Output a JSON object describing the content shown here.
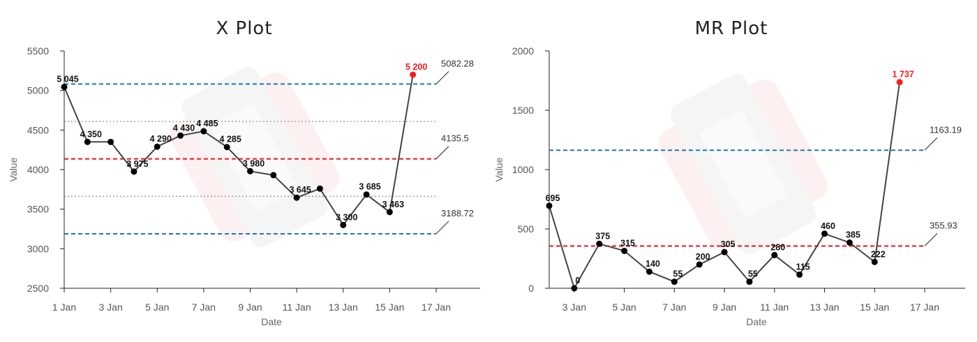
{
  "chart_data": [
    {
      "type": "line",
      "title": "X Plot",
      "xlabel": "Date",
      "ylabel": "Value",
      "ylim": [
        2500,
        5500
      ],
      "yticks": [
        2500,
        3000,
        3500,
        4000,
        4500,
        5000,
        5500
      ],
      "yticklabels": [
        "2500",
        "3000",
        "3500",
        "4000",
        "4500",
        "5000",
        "5500"
      ],
      "xlim": [
        1,
        17
      ],
      "xticks": [
        1,
        3,
        5,
        7,
        9,
        11,
        13,
        15,
        17
      ],
      "xticklabels": [
        "1 Jan",
        "3 Jan",
        "5 Jan",
        "7 Jan",
        "9 Jan",
        "11 Jan",
        "13 Jan",
        "15 Jan",
        "17 Jan"
      ],
      "points": [
        {
          "x": 1,
          "y": 5045,
          "label": "5 045",
          "outlier": false
        },
        {
          "x": 2,
          "y": 4350,
          "label": "4 350",
          "outlier": false
        },
        {
          "x": 3,
          "y": 4350,
          "label": "",
          "outlier": false
        },
        {
          "x": 4,
          "y": 3975,
          "label": "3 975",
          "outlier": false
        },
        {
          "x": 5,
          "y": 4290,
          "label": "4 290",
          "outlier": false
        },
        {
          "x": 6,
          "y": 4430,
          "label": "4 430",
          "outlier": false
        },
        {
          "x": 7,
          "y": 4485,
          "label": "4 485",
          "outlier": false
        },
        {
          "x": 8,
          "y": 4285,
          "label": "4 285",
          "outlier": false
        },
        {
          "x": 9,
          "y": 3980,
          "label": "3 980",
          "outlier": false
        },
        {
          "x": 10,
          "y": 3930,
          "label": "",
          "outlier": false
        },
        {
          "x": 11,
          "y": 3645,
          "label": "3 645",
          "outlier": false
        },
        {
          "x": 12,
          "y": 3760,
          "label": "",
          "outlier": false
        },
        {
          "x": 13,
          "y": 3300,
          "label": "3 300",
          "outlier": false
        },
        {
          "x": 14,
          "y": 3685,
          "label": "3 685",
          "outlier": false
        },
        {
          "x": 15,
          "y": 3463,
          "label": "3 463",
          "outlier": false
        },
        {
          "x": 16,
          "y": 5200,
          "label": "5 200",
          "outlier": true
        }
      ],
      "reference_lines": [
        {
          "kind": "ucl",
          "y": 5082.28,
          "label": "5082.28",
          "color": "#1f77b4",
          "style": "dashed"
        },
        {
          "kind": "sigma",
          "y": 4609,
          "label": "",
          "color": "#777777",
          "style": "dotted"
        },
        {
          "kind": "mean",
          "y": 4135.5,
          "label": "4135.5",
          "color": "#e8141b",
          "style": "dashed"
        },
        {
          "kind": "sigma",
          "y": 3662,
          "label": "",
          "color": "#777777",
          "style": "dotted"
        },
        {
          "kind": "lcl",
          "y": 3188.72,
          "label": "3188.72",
          "color": "#1f77b4",
          "style": "dashed"
        }
      ],
      "grid": false
    },
    {
      "type": "line",
      "title": "MR Plot",
      "xlabel": "Date",
      "ylabel": "Value",
      "ylim": [
        0,
        2000
      ],
      "yticks": [
        0,
        500,
        1000,
        1500,
        2000
      ],
      "yticklabels": [
        "0",
        "500",
        "1000",
        "1500",
        "2000"
      ],
      "xlim": [
        2,
        17
      ],
      "xticks": [
        3,
        5,
        7,
        9,
        11,
        13,
        15,
        17
      ],
      "xticklabels": [
        "3 Jan",
        "5 Jan",
        "7 Jan",
        "9 Jan",
        "11 Jan",
        "13 Jan",
        "15 Jan",
        "17 Jan"
      ],
      "points": [
        {
          "x": 2,
          "y": 695,
          "label": "695",
          "outlier": false
        },
        {
          "x": 3,
          "y": 0,
          "label": "0",
          "outlier": false
        },
        {
          "x": 4,
          "y": 375,
          "label": "375",
          "outlier": false
        },
        {
          "x": 5,
          "y": 315,
          "label": "315",
          "outlier": false
        },
        {
          "x": 6,
          "y": 140,
          "label": "140",
          "outlier": false
        },
        {
          "x": 7,
          "y": 55,
          "label": "55",
          "outlier": false
        },
        {
          "x": 8,
          "y": 200,
          "label": "200",
          "outlier": false
        },
        {
          "x": 9,
          "y": 305,
          "label": "305",
          "outlier": false
        },
        {
          "x": 10,
          "y": 55,
          "label": "55",
          "outlier": false
        },
        {
          "x": 11,
          "y": 280,
          "label": "280",
          "outlier": false
        },
        {
          "x": 12,
          "y": 115,
          "label": "115",
          "outlier": false
        },
        {
          "x": 13,
          "y": 460,
          "label": "460",
          "outlier": false
        },
        {
          "x": 14,
          "y": 385,
          "label": "385",
          "outlier": false
        },
        {
          "x": 15,
          "y": 222,
          "label": "222",
          "outlier": false
        },
        {
          "x": 16,
          "y": 1737,
          "label": "1 737",
          "outlier": true
        }
      ],
      "reference_lines": [
        {
          "kind": "ucl",
          "y": 1163.19,
          "label": "1163.19",
          "color": "#1f77b4",
          "style": "dashed"
        },
        {
          "kind": "mean",
          "y": 355.93,
          "label": "355.93",
          "color": "#e8141b",
          "style": "dashed"
        }
      ],
      "grid": false
    }
  ],
  "colors": {
    "line": "#444444",
    "point": "#000000",
    "outlier": "#ff1a1a",
    "axis": "#222222",
    "watermark": "watermark-logo"
  }
}
